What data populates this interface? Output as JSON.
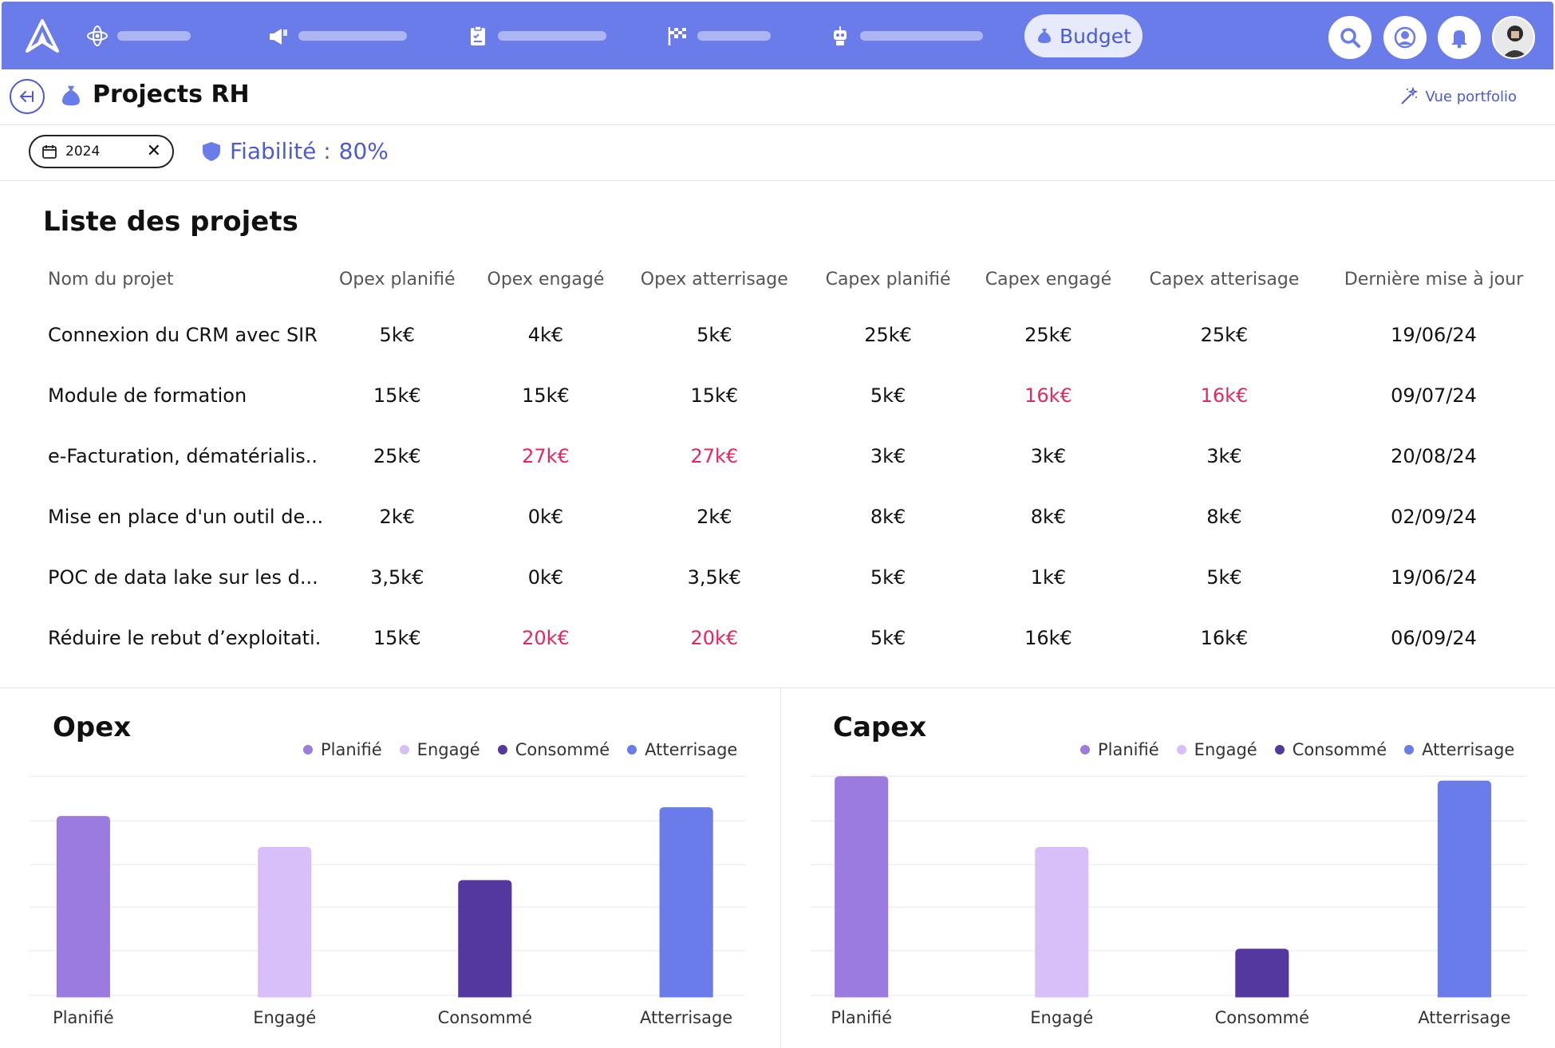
{
  "nav": {
    "items": [
      {
        "icon": "atom-icon"
      },
      {
        "icon": "megaphone-icon"
      },
      {
        "icon": "clipboard-icon"
      },
      {
        "icon": "flag-icon"
      },
      {
        "icon": "robot-icon"
      }
    ],
    "budget_label": "Budget",
    "right_buttons": [
      "search-icon",
      "user-icon",
      "bell-icon"
    ]
  },
  "header": {
    "title": "Projects RH",
    "vue_portfolio": "Vue portfolio"
  },
  "filters": {
    "year": "2024",
    "fiabilite_label": "Fiabilité :",
    "fiabilite_value": "80%"
  },
  "projects": {
    "title": "Liste des projets",
    "columns": [
      "Nom du projet",
      "Opex planifié",
      "Opex engagé",
      "Opex atterrisage",
      "Capex planifié",
      "Capex engagé",
      "Capex atterisage",
      "Dernière mise à jour"
    ],
    "rows": [
      {
        "cells": [
          "Connexion du CRM avec SIR",
          "5k€",
          "4k€",
          "5k€",
          "25k€",
          "25k€",
          "25k€",
          "19/06/24"
        ],
        "red": []
      },
      {
        "cells": [
          "Module de formation",
          "15k€",
          "15k€",
          "15k€",
          "5k€",
          "16k€",
          "16k€",
          "09/07/24"
        ],
        "red": [
          5,
          6
        ]
      },
      {
        "cells": [
          "e-Facturation, dématérialis..",
          "25k€",
          "27k€",
          "27k€",
          "3k€",
          "3k€",
          "3k€",
          "20/08/24"
        ],
        "red": [
          2,
          3
        ]
      },
      {
        "cells": [
          "Mise en place d'un outil de...",
          "2k€",
          "0k€",
          "2k€",
          "8k€",
          "8k€",
          "8k€",
          "02/09/24"
        ],
        "red": []
      },
      {
        "cells": [
          "POC de data lake sur les d...",
          "3,5k€",
          "0k€",
          "3,5k€",
          "5k€",
          "1k€",
          "5k€",
          "19/06/24"
        ],
        "red": []
      },
      {
        "cells": [
          "Réduire le rebut d’exploitati.",
          "15k€",
          "20k€",
          "20k€",
          "5k€",
          "16k€",
          "16k€",
          "06/09/24"
        ],
        "red": [
          2,
          3
        ]
      }
    ]
  },
  "legend": [
    {
      "label": "Planifié",
      "color": "#9B7BE0"
    },
    {
      "label": "Engagé",
      "color": "#D8BFFA"
    },
    {
      "label": "Consommé",
      "color": "#54389F"
    },
    {
      "label": "Atterrisage",
      "color": "#6A7BEA"
    }
  ],
  "chart_data": [
    {
      "type": "bar",
      "title": "Opex",
      "categories": [
        "Planifié",
        "Engagé",
        "Consommé",
        "Atterrisage"
      ],
      "values": [
        82,
        68,
        53,
        86
      ],
      "ylim": [
        0,
        100
      ],
      "colors": [
        "#9B7BE0",
        "#D8BFFA",
        "#54389F",
        "#6A7BEA"
      ],
      "grid": true
    },
    {
      "type": "bar",
      "title": "Capex",
      "categories": [
        "Planifié",
        "Engagé",
        "Consommé",
        "Atterrisage"
      ],
      "values": [
        100,
        68,
        22,
        98
      ],
      "ylim": [
        0,
        100
      ],
      "colors": [
        "#9B7BE0",
        "#D8BFFA",
        "#54389F",
        "#6A7BEA"
      ],
      "grid": true
    }
  ]
}
